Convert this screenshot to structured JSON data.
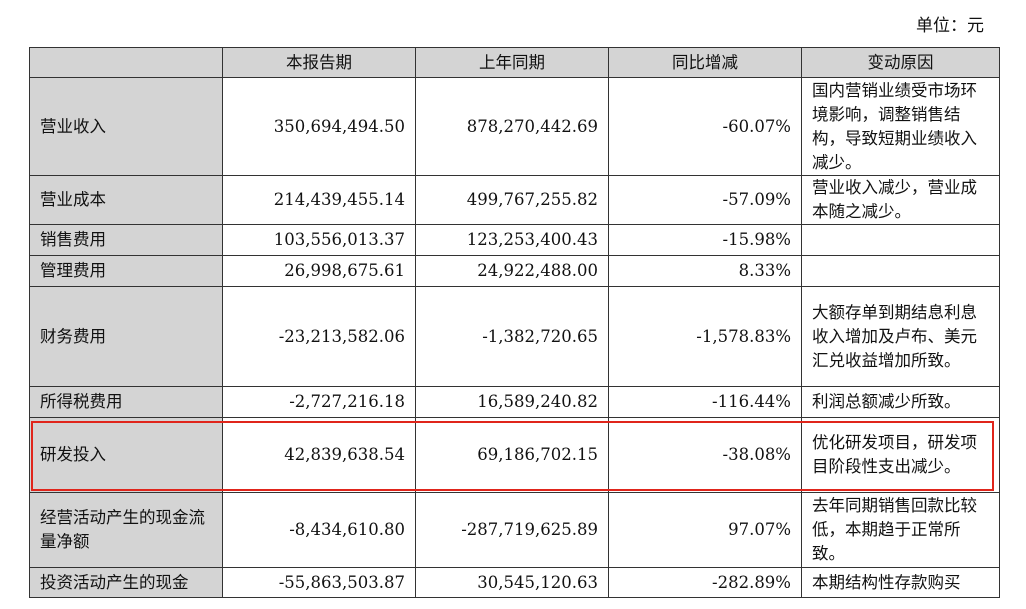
{
  "unit_label": "单位：元",
  "headers": [
    "",
    "本报告期",
    "上年同期",
    "同比增减",
    "变动原因"
  ],
  "rows": [
    {
      "item": "营业收入",
      "current": "350,694,494.50",
      "prior": "878,270,442.69",
      "change": "-60.07%",
      "reason": "国内营销业绩受市场环境影响，调整销售结构，导致短期业绩收入减少。"
    },
    {
      "item": "营业成本",
      "current": "214,439,455.14",
      "prior": "499,767,255.82",
      "change": "-57.09%",
      "reason": "营业收入减少，营业成本随之减少。"
    },
    {
      "item": "销售费用",
      "current": "103,556,013.37",
      "prior": "123,253,400.43",
      "change": "-15.98%",
      "reason": ""
    },
    {
      "item": "管理费用",
      "current": "26,998,675.61",
      "prior": "24,922,488.00",
      "change": "8.33%",
      "reason": ""
    },
    {
      "item": "财务费用",
      "current": "-23,213,582.06",
      "prior": "-1,382,720.65",
      "change": "-1,578.83%",
      "reason": "大额存单到期结息利息收入增加及卢布、美元汇兑收益增加所致。"
    },
    {
      "item": "所得税费用",
      "current": "-2,727,216.18",
      "prior": "16,589,240.82",
      "change": "-116.44%",
      "reason": "利润总额减少所致。"
    },
    {
      "item": "研发投入",
      "current": "42,839,638.54",
      "prior": "69,186,702.15",
      "change": "-38.08%",
      "reason": "优化研发项目，研发项目阶段性支出减少。"
    },
    {
      "item": "经营活动产生的现金流量净额",
      "current": "-8,434,610.80",
      "prior": "-287,719,625.89",
      "change": "97.07%",
      "reason": "去年同期销售回款比较低，本期趋于正常所致。"
    },
    {
      "item": "投资活动产生的现金",
      "current": "-55,863,503.87",
      "prior": "30,545,120.63",
      "change": "-282.89%",
      "reason": "本期结构性存款购买"
    }
  ],
  "highlight_color": "#e0251b"
}
